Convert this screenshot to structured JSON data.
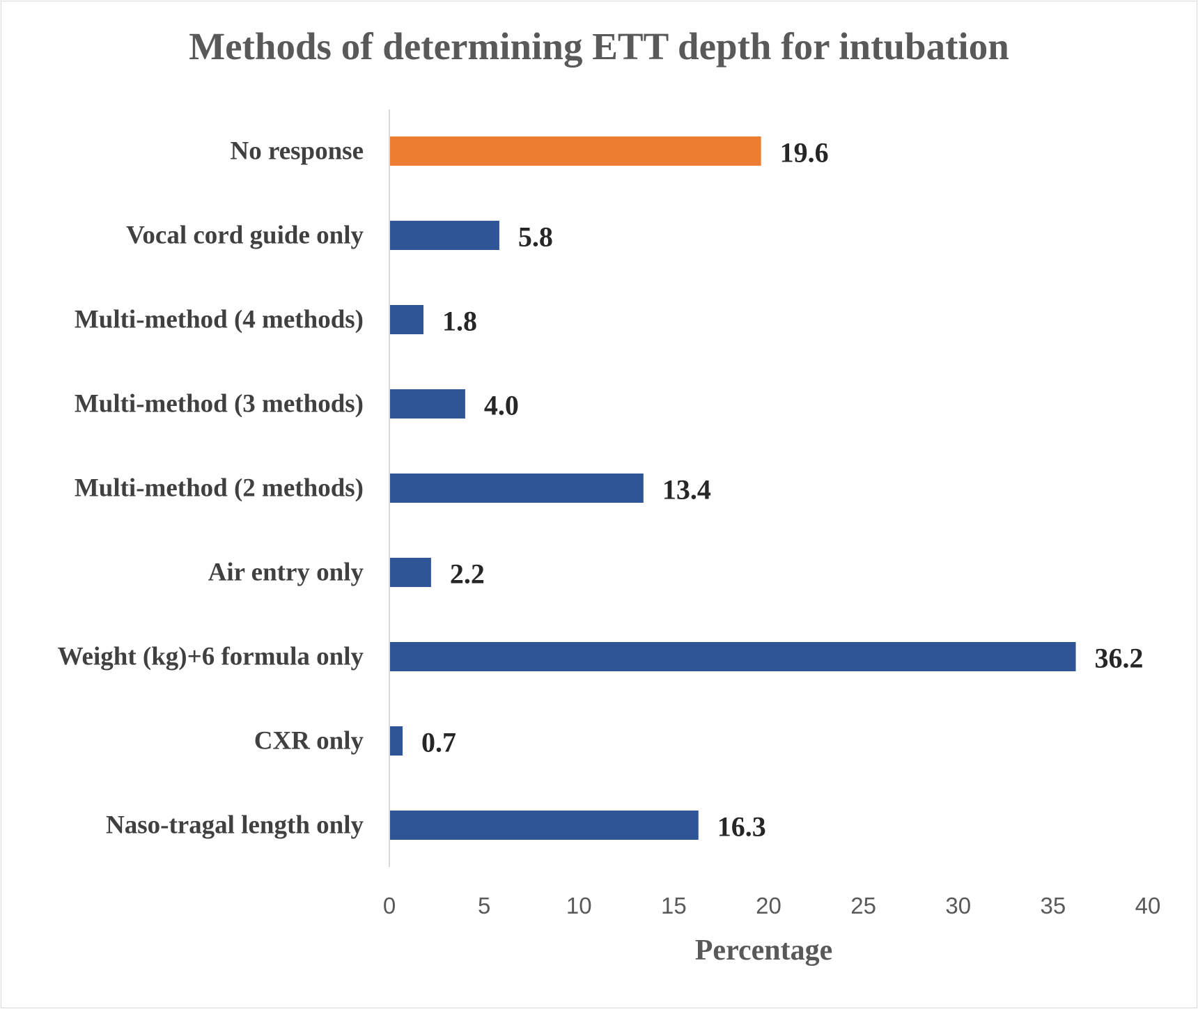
{
  "chart_data": {
    "type": "bar",
    "orientation": "horizontal",
    "title": "Methods of determining ETT depth for intubation",
    "xlabel": "Percentage",
    "ylabel": "",
    "categories": [
      "No response",
      "Vocal cord guide only",
      "Multi-method (4 methods)",
      "Multi-method (3 methods)",
      "Multi-method (2 methods)",
      "Air entry only",
      "Weight (kg)+6 formula only",
      "CXR only",
      "Naso-tragal length only"
    ],
    "values": [
      19.6,
      5.8,
      1.8,
      4.0,
      13.4,
      2.2,
      36.2,
      0.7,
      16.3
    ],
    "value_labels": [
      "19.6",
      "5.8",
      "1.8",
      "4.0",
      "13.4",
      "2.2",
      "36.2",
      "0.7",
      "16.3"
    ],
    "bar_colors": [
      "#ED7D31",
      "#2F5597",
      "#2F5597",
      "#2F5597",
      "#2F5597",
      "#2F5597",
      "#2F5597",
      "#2F5597",
      "#2F5597"
    ],
    "xlim": [
      0,
      40
    ],
    "xticks": [
      0,
      5,
      10,
      15,
      20,
      25,
      30,
      35,
      40
    ],
    "grid": false,
    "legend": "none"
  }
}
